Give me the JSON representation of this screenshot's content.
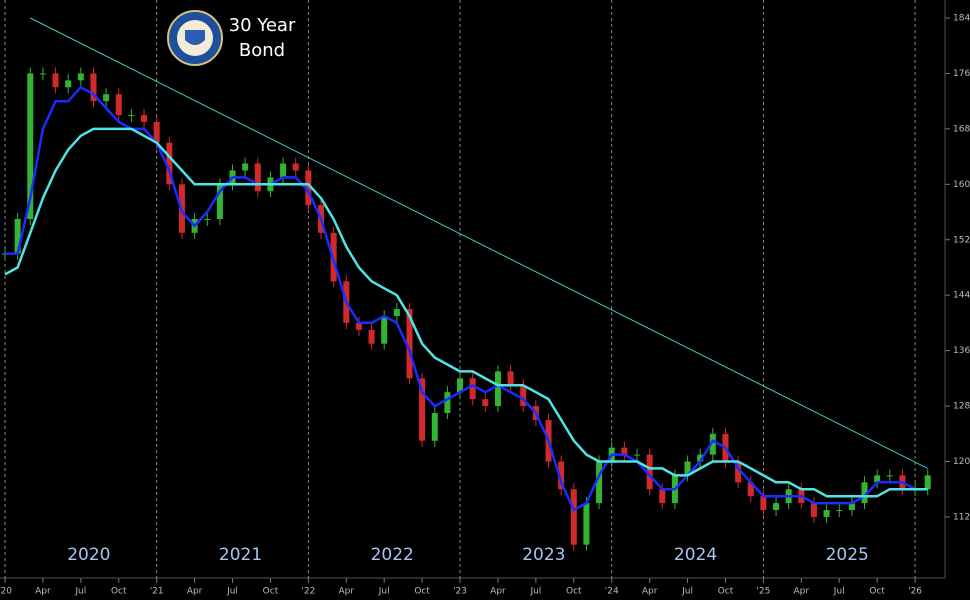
{
  "chart_data": {
    "type": "line",
    "title": "30 Year Bond",
    "x": [
      "2020-01",
      "2020-02",
      "2020-03",
      "2020-04",
      "2020-05",
      "2020-06",
      "2020-07",
      "2020-08",
      "2020-09",
      "2020-10",
      "2020-11",
      "2020-12",
      "2021-01",
      "2021-02",
      "2021-03",
      "2021-04",
      "2021-05",
      "2021-06",
      "2021-07",
      "2021-08",
      "2021-09",
      "2021-10",
      "2021-11",
      "2021-12",
      "2022-01",
      "2022-02",
      "2022-03",
      "2022-04",
      "2022-05",
      "2022-06",
      "2022-07",
      "2022-08",
      "2022-09",
      "2022-10",
      "2022-11",
      "2022-12",
      "2023-01",
      "2023-02",
      "2023-03",
      "2023-04",
      "2023-05",
      "2023-06",
      "2023-07",
      "2023-08",
      "2023-09",
      "2023-10",
      "2023-11",
      "2023-12",
      "2024-01",
      "2024-02",
      "2024-03",
      "2024-04",
      "2024-05",
      "2024-06",
      "2024-07",
      "2024-08",
      "2024-09",
      "2024-10",
      "2024-11",
      "2024-12",
      "2025-01",
      "2025-02",
      "2025-03",
      "2025-04",
      "2025-05",
      "2025-06",
      "2025-07",
      "2025-08",
      "2025-09",
      "2025-10",
      "2025-11",
      "2025-12",
      "2026-01",
      "2026-02"
    ],
    "series": [
      {
        "up_color": "#33b533",
        "down_color": "#d22a2a",
        "values": [
          150,
          155,
          176,
          176,
          174,
          175,
          176,
          172,
          173,
          170,
          170,
          169,
          166,
          160,
          153,
          155,
          155,
          160,
          162,
          163,
          159,
          161,
          163,
          162,
          157,
          153,
          146,
          140,
          139,
          137,
          141,
          142,
          132,
          123,
          127,
          130,
          132,
          129,
          128,
          133,
          131,
          128,
          126,
          120,
          116,
          108,
          114,
          120,
          122,
          121,
          121,
          116,
          114,
          118,
          120,
          121,
          124,
          120,
          117,
          115,
          113,
          114,
          116,
          114,
          112,
          113,
          113,
          114,
          117,
          118,
          118,
          116,
          116,
          118
        ]
      },
      {
        "color": "#1a2cff",
        "values": [
          150,
          150,
          158,
          168,
          172,
          172,
          174,
          173,
          171,
          169,
          168,
          168,
          166,
          162,
          156,
          154,
          156,
          159,
          161,
          161,
          160,
          160,
          161,
          161,
          159,
          155,
          149,
          143,
          140,
          140,
          141,
          140,
          136,
          130,
          128,
          129,
          130,
          131,
          130,
          131,
          130,
          129,
          127,
          123,
          117,
          113,
          114,
          118,
          121,
          121,
          120,
          118,
          116,
          116,
          118,
          120,
          123,
          122,
          119,
          117,
          115,
          115,
          115,
          115,
          114,
          114,
          114,
          114,
          115,
          117,
          117,
          117,
          116,
          116
        ]
      },
      {
        "color": "#4fe3e3",
        "values": [
          147,
          148,
          153,
          158,
          162,
          165,
          167,
          168,
          168,
          168,
          168,
          167,
          166,
          164,
          162,
          160,
          160,
          160,
          160,
          160,
          160,
          160,
          160,
          160,
          160,
          158,
          155,
          151,
          148,
          146,
          145,
          144,
          141,
          137,
          135,
          134,
          133,
          133,
          132,
          131,
          131,
          131,
          130,
          129,
          126,
          123,
          121,
          120,
          120,
          120,
          120,
          119,
          119,
          118,
          118,
          119,
          120,
          120,
          120,
          119,
          118,
          117,
          117,
          116,
          116,
          115,
          115,
          115,
          115,
          115,
          116,
          116,
          116,
          116
        ]
      }
    ],
    "trendline": {
      "color": "#3fc9c9",
      "x": [
        "2020-03",
        "2026-02"
      ],
      "values": [
        184,
        119
      ]
    },
    "ylim": [
      106,
      185.5
    ],
    "yticks": [
      112,
      120,
      128,
      136,
      144,
      152,
      160,
      168,
      176,
      184
    ],
    "xticks": [
      {
        "value": "2020-01",
        "label": "'20"
      },
      {
        "value": "2020-04",
        "label": "Apr"
      },
      {
        "value": "2020-07",
        "label": "Jul"
      },
      {
        "value": "2020-10",
        "label": "Oct"
      },
      {
        "value": "2021-01",
        "label": "'21"
      },
      {
        "value": "2021-04",
        "label": "Apr"
      },
      {
        "value": "2021-07",
        "label": "Jul"
      },
      {
        "value": "2021-10",
        "label": "Oct"
      },
      {
        "value": "2022-01",
        "label": "'22"
      },
      {
        "value": "2022-04",
        "label": "Apr"
      },
      {
        "value": "2022-07",
        "label": "Jul"
      },
      {
        "value": "2022-10",
        "label": "Oct"
      },
      {
        "value": "2023-01",
        "label": "'23"
      },
      {
        "value": "2023-04",
        "label": "Apr"
      },
      {
        "value": "2023-07",
        "label": "Jul"
      },
      {
        "value": "2023-10",
        "label": "Oct"
      },
      {
        "value": "2024-01",
        "label": "'24"
      },
      {
        "value": "2024-04",
        "label": "Apr"
      },
      {
        "value": "2024-07",
        "label": "Jul"
      },
      {
        "value": "2024-10",
        "label": "Oct"
      },
      {
        "value": "2025-01",
        "label": "'25"
      },
      {
        "value": "2025-04",
        "label": "Apr"
      },
      {
        "value": "2025-07",
        "label": "Jul"
      },
      {
        "value": "2025-10",
        "label": "Oct"
      },
      {
        "value": "2026-01",
        "label": "'26"
      }
    ],
    "year_labels": [
      {
        "value": "2020-07",
        "label": "2020"
      },
      {
        "value": "2021-07",
        "label": "2021"
      },
      {
        "value": "2022-07",
        "label": "2022"
      },
      {
        "value": "2023-07",
        "label": "2023"
      },
      {
        "value": "2024-07",
        "label": "2024"
      },
      {
        "value": "2025-07",
        "label": "2025"
      }
    ]
  }
}
